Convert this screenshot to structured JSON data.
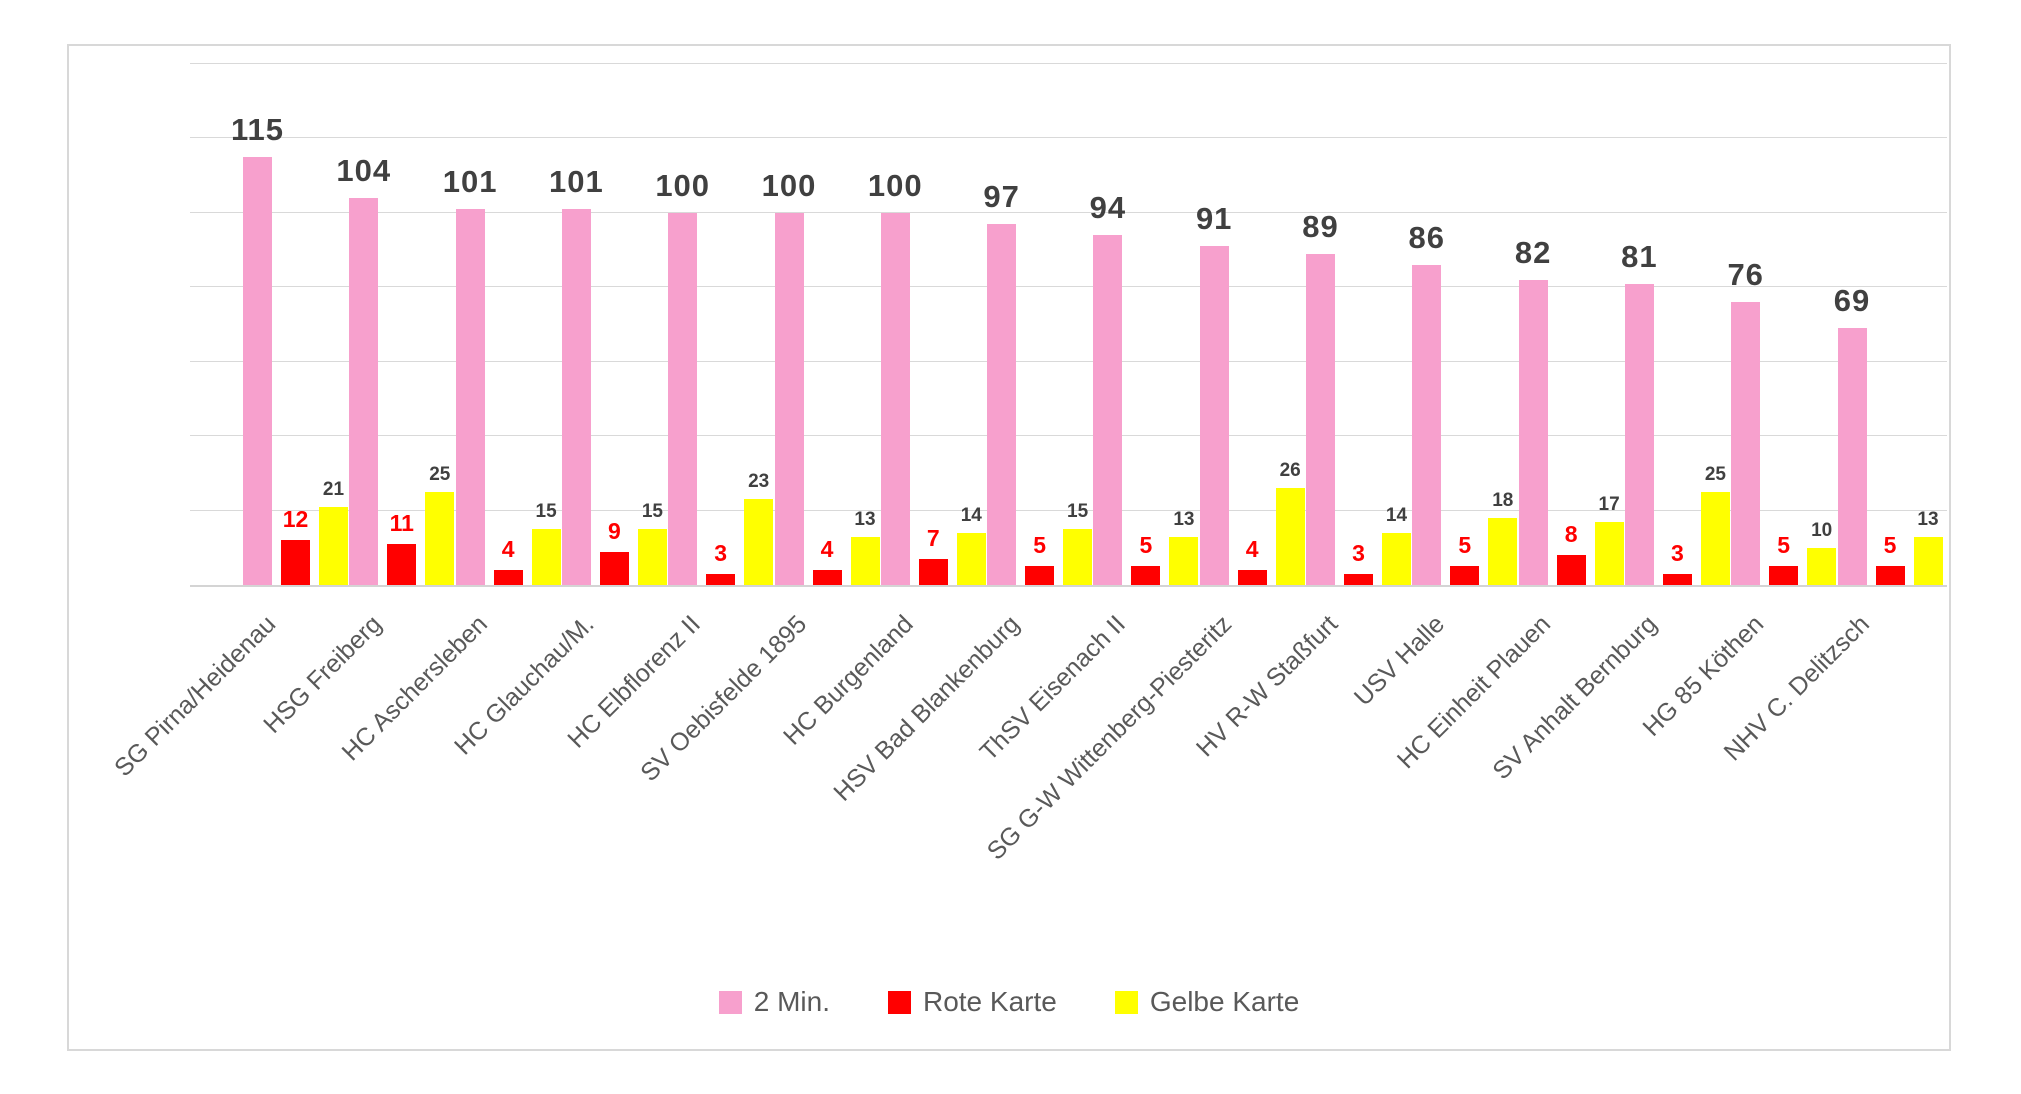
{
  "chart_data": {
    "type": "bar",
    "title": "",
    "categories": [
      "SG Pirna/Heidenau",
      "HSG Freiberg",
      "HC Aschersleben",
      "HC Glauchau/M.",
      "HC Elbflorenz II",
      "SV Oebisfelde 1895",
      "HC Burgenland",
      "HSV Bad Blankenburg",
      "ThSV Eisenach II",
      "SG G-W Wittenberg-Piesteritz",
      "HV R-W Staßfurt",
      "USV Halle",
      "HC Einheit Plauen",
      "SV Anhalt Bernburg",
      "HG 85 Köthen",
      "NHV C. Delitzsch"
    ],
    "series": [
      {
        "name": "2 Min.",
        "color": "#f7a0cd",
        "label_color": "#404040",
        "values": [
          115,
          104,
          101,
          101,
          100,
          100,
          100,
          97,
          94,
          91,
          89,
          86,
          82,
          81,
          76,
          69
        ]
      },
      {
        "name": "Rote Karte",
        "color": "#ff0000",
        "label_color": "#ff0000",
        "values": [
          12,
          11,
          4,
          9,
          3,
          4,
          7,
          5,
          5,
          4,
          3,
          5,
          8,
          3,
          5,
          5
        ]
      },
      {
        "name": "Gelbe Karte",
        "color": "#ffff00",
        "label_color": "#404040",
        "values": [
          21,
          25,
          15,
          15,
          23,
          13,
          14,
          15,
          13,
          26,
          14,
          18,
          17,
          25,
          10,
          13
        ]
      }
    ],
    "xlabel": "",
    "ylabel": "",
    "ylim": [
      0,
      140
    ],
    "gridline_step": 20,
    "grid": true,
    "y_tick_labels_visible": false,
    "legend_position": "bottom",
    "grid_color": "#d9d9d9",
    "axis_text_color": "#595959"
  }
}
